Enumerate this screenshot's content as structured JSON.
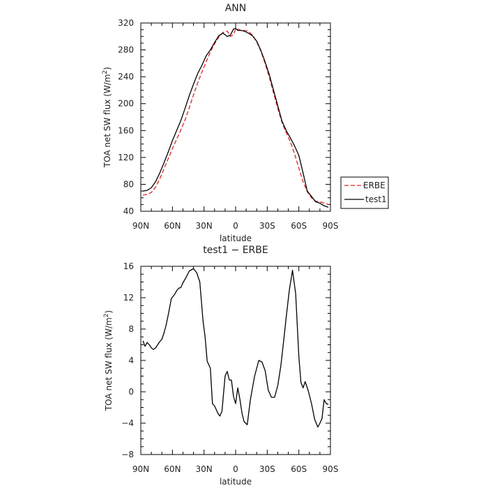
{
  "chart_data": [
    {
      "type": "line",
      "title": "ANN",
      "xlabel": "latitude",
      "ylabel": "TOA net SW flux (W/m²)",
      "ylabel_parts": {
        "prefix": "TOA net SW flux (W/m",
        "sup": "2",
        "suffix": ")"
      },
      "xlim": [
        -90,
        90
      ],
      "ylim": [
        40,
        320
      ],
      "xticks": [
        -90,
        -60,
        -30,
        0,
        30,
        60,
        90
      ],
      "xtick_labels": [
        "90N",
        "60N",
        "30N",
        "0",
        "30S",
        "60S",
        "90S"
      ],
      "yticks": [
        40,
        80,
        120,
        160,
        200,
        240,
        280,
        320
      ],
      "ytick_labels": [
        "40",
        "80",
        "120",
        "160",
        "200",
        "240",
        "280",
        "320"
      ],
      "legend": "right, outside plot",
      "series": [
        {
          "name": "ERBE",
          "color": "#dd2222",
          "dash": "dashed",
          "x": [
            -88,
            -84,
            -80,
            -76,
            -72,
            -68,
            -64,
            -60,
            -56,
            -52,
            -48,
            -44,
            -40,
            -36,
            -32,
            -28,
            -24,
            -20,
            -16,
            -12,
            -8,
            -5,
            -2,
            0,
            2,
            5,
            8,
            12,
            16,
            20,
            24,
            28,
            32,
            36,
            40,
            44,
            48,
            52,
            56,
            60,
            64,
            68,
            72,
            76,
            80,
            84,
            88
          ],
          "y": [
            64,
            65,
            68,
            76,
            88,
            103,
            118,
            133,
            147,
            161,
            176,
            194,
            213,
            231,
            247,
            262,
            277,
            289,
            299,
            306,
            308,
            300,
            303,
            311,
            311,
            309,
            309,
            308,
            302,
            292,
            278,
            260,
            239,
            216,
            193,
            172,
            157,
            143,
            125,
            104,
            84,
            69,
            60,
            55,
            54,
            52,
            50
          ]
        },
        {
          "name": "test1",
          "color": "#000000",
          "dash": "solid",
          "x": [
            -88,
            -84,
            -80,
            -76,
            -72,
            -68,
            -64,
            -60,
            -56,
            -52,
            -48,
            -44,
            -40,
            -36,
            -32,
            -28,
            -24,
            -20,
            -16,
            -12,
            -8,
            -5,
            -2,
            0,
            2,
            5,
            8,
            12,
            16,
            20,
            24,
            28,
            32,
            36,
            40,
            44,
            48,
            52,
            56,
            60,
            64,
            68,
            72,
            76,
            80,
            84,
            88
          ],
          "y": [
            70,
            71,
            75,
            84,
            97,
            112,
            128,
            145,
            160,
            175,
            193,
            212,
            229,
            245,
            257,
            271,
            280,
            291,
            301,
            305,
            300,
            302,
            311,
            312,
            309,
            309,
            308,
            305,
            301,
            293,
            279,
            262,
            243,
            220,
            197,
            174,
            160,
            149,
            137,
            123,
            97,
            70,
            62,
            54,
            52,
            48,
            46
          ]
        }
      ]
    },
    {
      "type": "line",
      "title": "test1 − ERBE",
      "xlabel": "latitude",
      "ylabel": "TOA net SW flux (W/m²)",
      "ylabel_parts": {
        "prefix": "TOA net SW flux (W/m",
        "sup": "2",
        "suffix": ")"
      },
      "xlim": [
        -90,
        90
      ],
      "ylim": [
        -8,
        16
      ],
      "xticks": [
        -90,
        -60,
        -30,
        0,
        30,
        60,
        90
      ],
      "xtick_labels": [
        "90N",
        "60N",
        "30N",
        "0",
        "30S",
        "60S",
        "90S"
      ],
      "yticks": [
        -8,
        -4,
        0,
        4,
        8,
        12,
        16
      ],
      "ytick_labels": [
        "−8",
        "−4",
        "0",
        "4",
        "8",
        "12",
        "16"
      ],
      "series": [
        {
          "color": "#000000",
          "dash": "solid",
          "x": [
            -88,
            -86,
            -84,
            -82,
            -80,
            -78,
            -76,
            -74,
            -72,
            -70,
            -68,
            -66,
            -64,
            -61,
            -58,
            -56,
            -54,
            -52,
            -50,
            -47,
            -44,
            -40,
            -37,
            -34,
            -31,
            -29,
            -27,
            -24,
            -22,
            -20,
            -17,
            -15,
            -13,
            -10,
            -8,
            -6,
            -4,
            -2,
            0,
            2,
            4,
            6,
            8,
            11,
            14,
            18,
            22,
            25,
            28,
            31,
            34,
            37,
            40,
            43,
            46,
            48,
            51,
            54,
            57,
            60,
            62,
            64,
            66,
            69,
            72,
            75,
            78,
            80,
            82,
            84,
            86,
            88
          ],
          "y": [
            6.5,
            5.8,
            6.3,
            6.0,
            5.6,
            5.4,
            5.6,
            6.0,
            6.4,
            6.7,
            7.5,
            8.5,
            9.8,
            11.9,
            12.4,
            12.9,
            13.2,
            13.3,
            13.9,
            14.6,
            15.4,
            15.7,
            15.2,
            14.0,
            9.1,
            7.0,
            3.9,
            3.0,
            -1.5,
            -1.8,
            -2.7,
            -3.1,
            -2.5,
            2.0,
            2.6,
            1.5,
            1.5,
            -0.6,
            -1.5,
            0.5,
            -0.9,
            -2.7,
            -3.8,
            -4.2,
            -1.0,
            2.0,
            4.0,
            3.8,
            2.7,
            0.2,
            -0.7,
            -0.7,
            0.8,
            3.4,
            7.0,
            9.5,
            13.0,
            15.5,
            12.5,
            4.5,
            1.2,
            0.5,
            1.3,
            0.1,
            -1.5,
            -3.5,
            -4.5,
            -4.0,
            -3.4,
            -1.0,
            -1.5,
            -1.6
          ]
        }
      ]
    }
  ]
}
